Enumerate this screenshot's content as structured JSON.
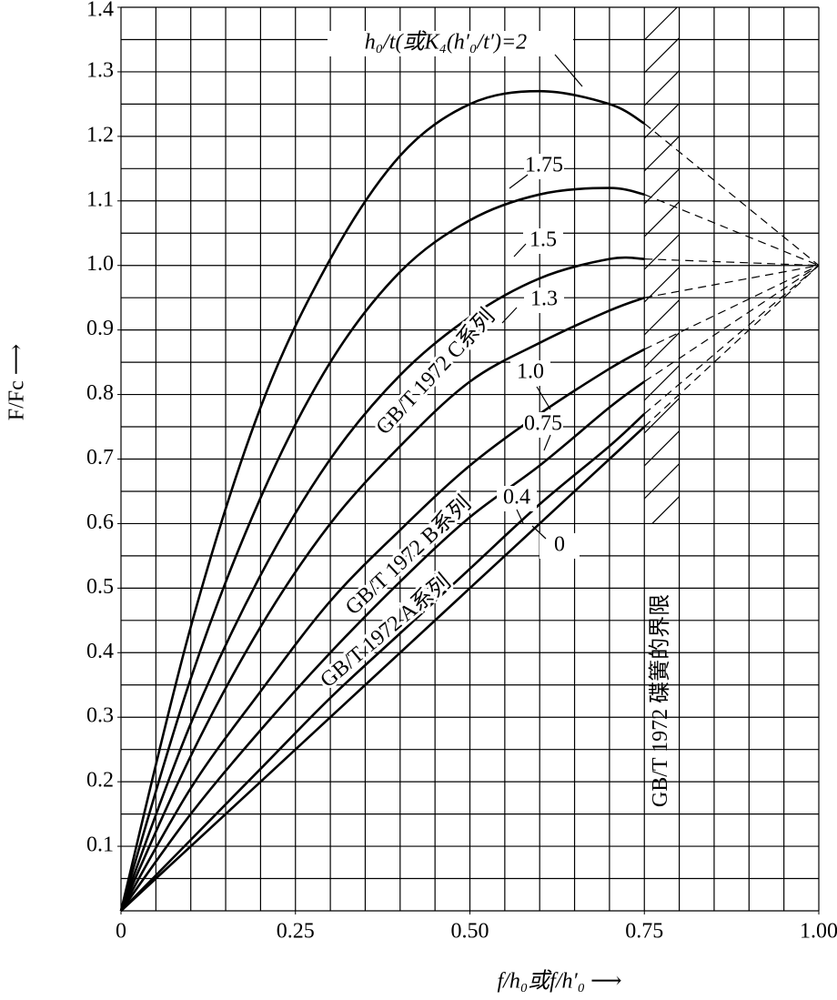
{
  "chart_data": {
    "type": "line",
    "y_label": "F/Fc ⟶",
    "x_label": "f/h₀或f/h′₀ ⟶",
    "x": [
      0,
      0.1,
      0.2,
      0.3,
      0.4,
      0.5,
      0.6,
      0.7,
      0.75,
      1.0
    ],
    "dashed_after_x": 0.75,
    "color": "#000000",
    "series": [
      {
        "name": "h₀/t(或K₄(h′₀/t′)=2",
        "values": [
          0,
          0.44,
          0.78,
          1.01,
          1.17,
          1.25,
          1.27,
          1.25,
          1.22,
          1.0
        ]
      },
      {
        "name": "1.75",
        "values": [
          0,
          0.36,
          0.64,
          0.85,
          0.99,
          1.07,
          1.11,
          1.12,
          1.11,
          1.0
        ]
      },
      {
        "name": "1.5",
        "values": [
          0,
          0.29,
          0.52,
          0.7,
          0.83,
          0.92,
          0.98,
          1.01,
          1.01,
          1.0
        ]
      },
      {
        "name": "1.3",
        "values": [
          0,
          0.24,
          0.44,
          0.6,
          0.72,
          0.82,
          0.88,
          0.93,
          0.95,
          1.0
        ]
      },
      {
        "name": "1.0",
        "values": [
          0,
          0.19,
          0.34,
          0.48,
          0.59,
          0.69,
          0.77,
          0.84,
          0.87,
          1.0
        ]
      },
      {
        "name": "0.75",
        "values": [
          0,
          0.15,
          0.28,
          0.4,
          0.51,
          0.61,
          0.69,
          0.78,
          0.82,
          1.0
        ]
      },
      {
        "name": "0.4",
        "values": [
          0,
          0.11,
          0.22,
          0.33,
          0.43,
          0.53,
          0.63,
          0.72,
          0.77,
          1.0
        ]
      },
      {
        "name": "0",
        "values": [
          0,
          0.1,
          0.2,
          0.3,
          0.4,
          0.5,
          0.6,
          0.7,
          0.75,
          1.0
        ]
      }
    ],
    "annotations": [
      "GB/T 1972 C系列",
      "GB/T 1972 B系列",
      "GB/T 1972 A系列"
    ],
    "limit_band": {
      "x": [
        0.75,
        0.8
      ],
      "y": [
        0.6,
        1.4
      ],
      "label": "GB/T 1972 碟簧的界限"
    },
    "xlim": [
      0,
      1.0
    ],
    "ylim": [
      0,
      1.4
    ],
    "xticks": [
      0,
      0.25,
      {
        "value": 0.5,
        "label": "0.50"
      },
      0.75,
      {
        "value": 1.0,
        "label": "1.00"
      }
    ],
    "yticks": [
      0.1,
      0.2,
      0.3,
      0.4,
      0.5,
      0.6,
      0.7,
      0.8,
      0.9,
      {
        "value": 1.0,
        "label": "1.0"
      },
      1.1,
      1.2,
      1.3,
      1.4
    ],
    "xgrid": [
      0,
      0.05,
      0.1,
      0.15,
      0.2,
      0.25,
      0.3,
      0.35,
      0.4,
      0.45,
      0.5,
      0.55,
      0.6,
      0.65,
      0.7,
      0.75,
      0.8,
      0.85,
      0.9,
      0.95,
      1.0
    ],
    "ygrid": [
      0,
      0.05,
      0.1,
      0.15,
      0.2,
      0.25,
      0.3,
      0.35,
      0.4,
      0.45,
      0.5,
      0.55,
      0.6,
      0.65,
      0.7,
      0.75,
      0.8,
      0.85,
      0.9,
      0.95,
      1.0,
      1.05,
      1.1,
      1.15,
      1.2,
      1.25,
      1.3,
      1.35,
      1.4
    ]
  }
}
